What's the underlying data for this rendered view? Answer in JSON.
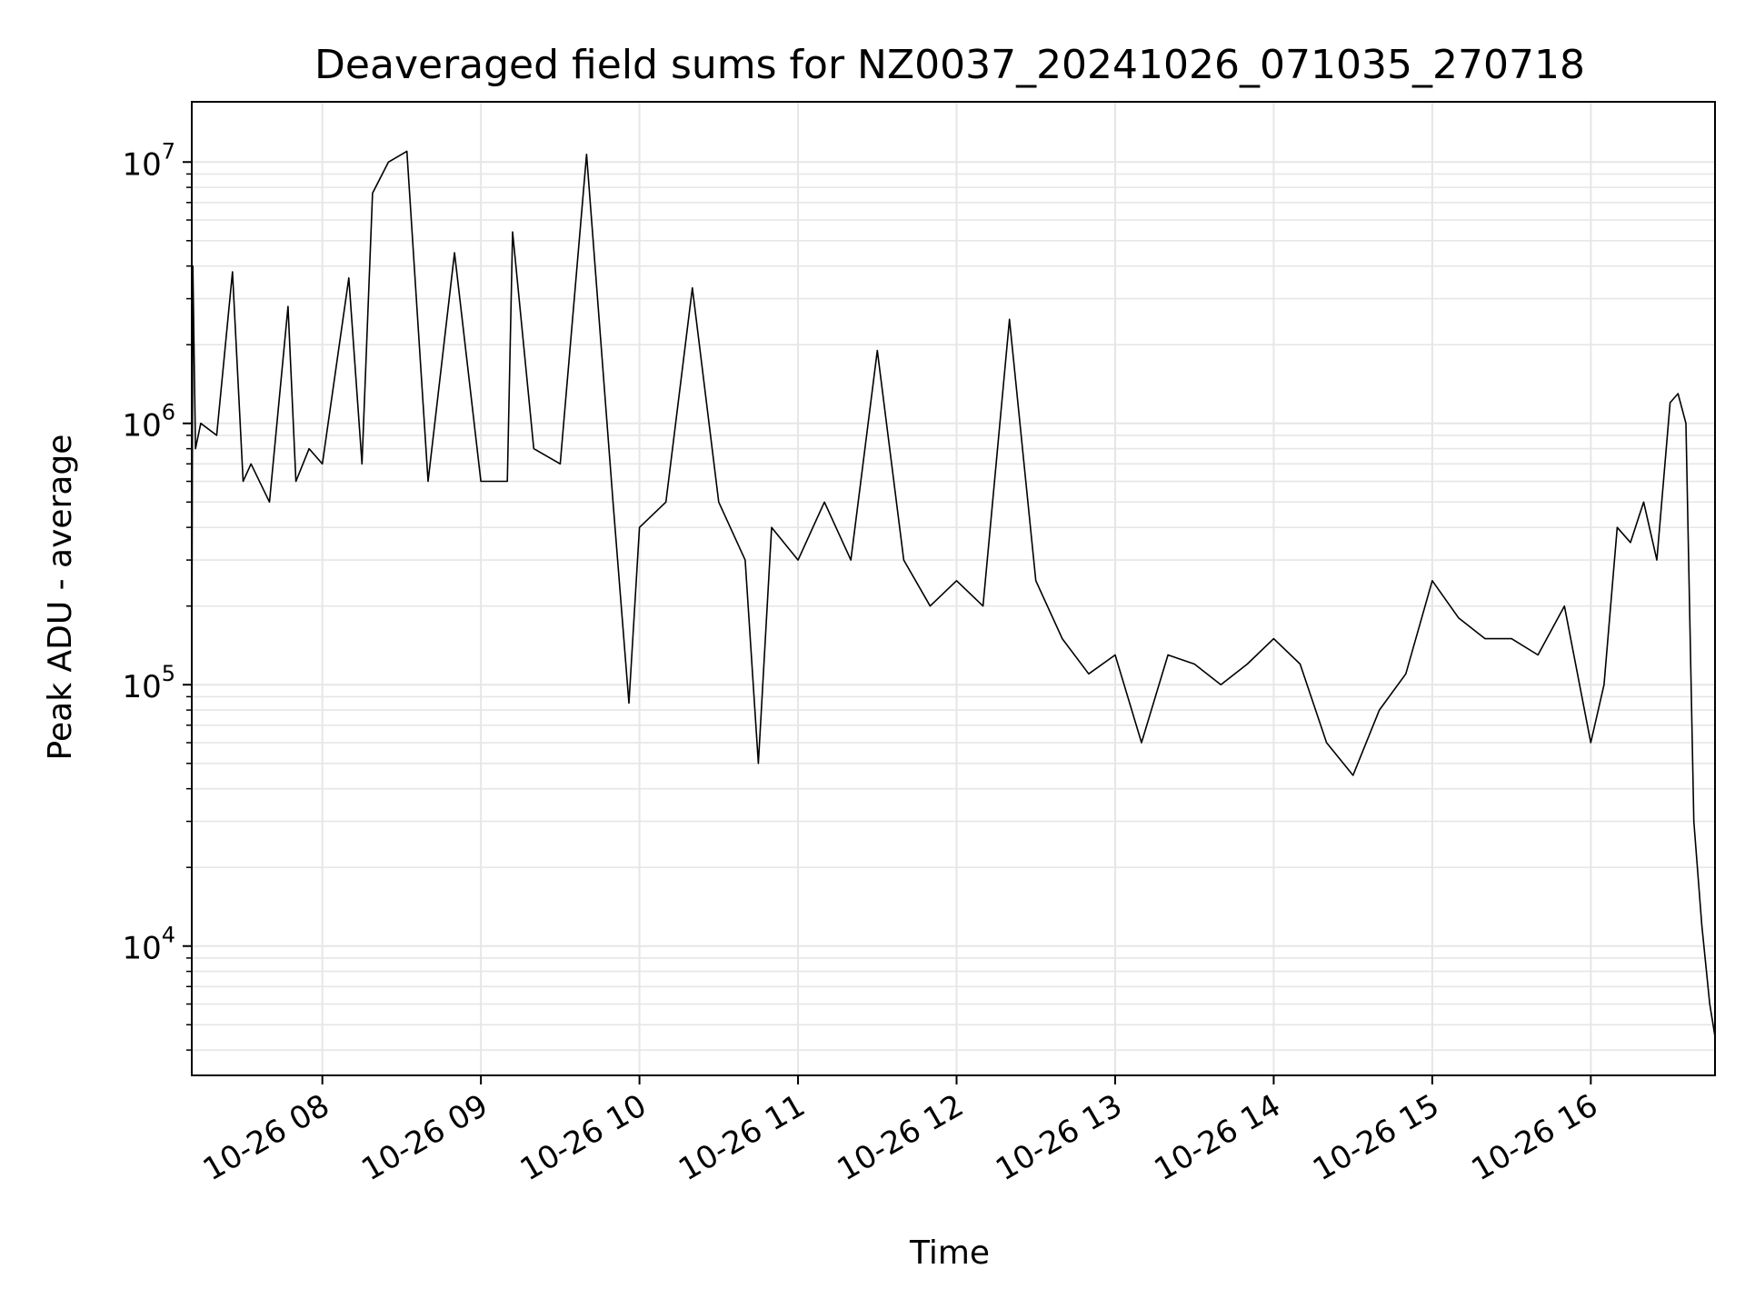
{
  "chart_data": {
    "type": "line",
    "title": "Deaveraged field sums for NZ0037_20241026_071035_270718",
    "xlabel": "Time",
    "ylabel": "Peak ADU - average",
    "yscale": "log",
    "grid": true,
    "line_color": "#000000",
    "grid_color": "#e6e6e6",
    "xlim": [
      "2024-10-26T07:10:35",
      "2024-10-26T16:47:00"
    ],
    "ylim": [
      3200,
      17000000
    ],
    "x_ticks": [
      {
        "value": "2024-10-26T08:00:00",
        "label": "10-26 08"
      },
      {
        "value": "2024-10-26T09:00:00",
        "label": "10-26 09"
      },
      {
        "value": "2024-10-26T10:00:00",
        "label": "10-26 10"
      },
      {
        "value": "2024-10-26T11:00:00",
        "label": "10-26 11"
      },
      {
        "value": "2024-10-26T12:00:00",
        "label": "10-26 12"
      },
      {
        "value": "2024-10-26T13:00:00",
        "label": "10-26 13"
      },
      {
        "value": "2024-10-26T14:00:00",
        "label": "10-26 14"
      },
      {
        "value": "2024-10-26T15:00:00",
        "label": "10-26 15"
      },
      {
        "value": "2024-10-26T16:00:00",
        "label": "10-26 16"
      }
    ],
    "y_ticks": [
      {
        "value": 10000,
        "base": "10",
        "exp": "4"
      },
      {
        "value": 100000,
        "base": "10",
        "exp": "5"
      },
      {
        "value": 1000000,
        "base": "10",
        "exp": "6"
      },
      {
        "value": 10000000,
        "base": "10",
        "exp": "7"
      }
    ],
    "series": [
      {
        "x": [
          "2024-10-26T07:10:35",
          "2024-10-26T07:11:00",
          "2024-10-26T07:12:00",
          "2024-10-26T07:14:00",
          "2024-10-26T07:20:00",
          "2024-10-26T07:26:00",
          "2024-10-26T07:30:00",
          "2024-10-26T07:33:00",
          "2024-10-26T07:40:00",
          "2024-10-26T07:47:00",
          "2024-10-26T07:50:00",
          "2024-10-26T07:55:00",
          "2024-10-26T08:00:00",
          "2024-10-26T08:10:00",
          "2024-10-26T08:15:00",
          "2024-10-26T08:19:00",
          "2024-10-26T08:25:00",
          "2024-10-26T08:32:00",
          "2024-10-26T08:40:00",
          "2024-10-26T08:50:00",
          "2024-10-26T09:00:00",
          "2024-10-26T09:10:00",
          "2024-10-26T09:12:00",
          "2024-10-26T09:20:00",
          "2024-10-26T09:30:00",
          "2024-10-26T09:40:00",
          "2024-10-26T09:50:00",
          "2024-10-26T09:56:00",
          "2024-10-26T10:00:00",
          "2024-10-26T10:10:00",
          "2024-10-26T10:20:00",
          "2024-10-26T10:30:00",
          "2024-10-26T10:40:00",
          "2024-10-26T10:45:00",
          "2024-10-26T10:50:00",
          "2024-10-26T11:00:00",
          "2024-10-26T11:10:00",
          "2024-10-26T11:20:00",
          "2024-10-26T11:30:00",
          "2024-10-26T11:40:00",
          "2024-10-26T11:50:00",
          "2024-10-26T12:00:00",
          "2024-10-26T12:10:00",
          "2024-10-26T12:20:00",
          "2024-10-26T12:30:00",
          "2024-10-26T12:40:00",
          "2024-10-26T12:50:00",
          "2024-10-26T13:00:00",
          "2024-10-26T13:10:00",
          "2024-10-26T13:20:00",
          "2024-10-26T13:30:00",
          "2024-10-26T13:40:00",
          "2024-10-26T13:50:00",
          "2024-10-26T14:00:00",
          "2024-10-26T14:10:00",
          "2024-10-26T14:20:00",
          "2024-10-26T14:30:00",
          "2024-10-26T14:40:00",
          "2024-10-26T14:50:00",
          "2024-10-26T15:00:00",
          "2024-10-26T15:10:00",
          "2024-10-26T15:20:00",
          "2024-10-26T15:30:00",
          "2024-10-26T15:40:00",
          "2024-10-26T15:50:00",
          "2024-10-26T16:00:00",
          "2024-10-26T16:05:00",
          "2024-10-26T16:10:00",
          "2024-10-26T16:15:00",
          "2024-10-26T16:20:00",
          "2024-10-26T16:25:00",
          "2024-10-26T16:30:00",
          "2024-10-26T16:33:00",
          "2024-10-26T16:36:00",
          "2024-10-26T16:39:00",
          "2024-10-26T16:42:00",
          "2024-10-26T16:45:00",
          "2024-10-26T16:47:00"
        ],
        "y": [
          100000,
          4000000,
          800000,
          1000000,
          900000,
          3800000,
          600000,
          700000,
          500000,
          2800000,
          600000,
          800000,
          700000,
          3600000,
          700000,
          7600000,
          10000000,
          11000000,
          600000,
          4500000,
          600000,
          600000,
          5400000,
          800000,
          700000,
          10700000,
          500000,
          85000,
          400000,
          500000,
          3300000,
          500000,
          300000,
          50000,
          400000,
          300000,
          500000,
          300000,
          1900000,
          300000,
          200000,
          250000,
          200000,
          2500000,
          250000,
          150000,
          110000,
          130000,
          60000,
          130000,
          120000,
          100000,
          120000,
          150000,
          120000,
          60000,
          45000,
          80000,
          110000,
          250000,
          180000,
          150000,
          150000,
          130000,
          200000,
          60000,
          100000,
          400000,
          350000,
          500000,
          300000,
          1200000,
          1300000,
          1000000,
          30000,
          12000,
          6000,
          4500
        ]
      }
    ]
  }
}
